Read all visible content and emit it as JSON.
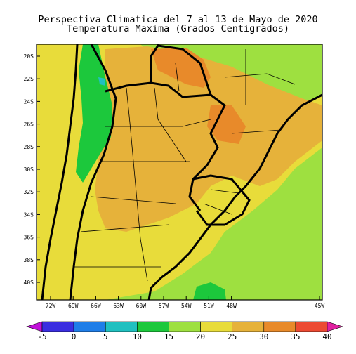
{
  "title": {
    "line1": "Perspectiva Climatica del 7 al 13 de Mayo de 2020",
    "line2": "Temperatura Maxima (Grados Centigrados)"
  },
  "map": {
    "lat_labels": [
      "20S",
      "22S",
      "24S",
      "26S",
      "28S",
      "30S",
      "32S",
      "34S",
      "36S",
      "38S",
      "40S"
    ],
    "lon_labels": [
      "72W",
      "69W",
      "66W",
      "63W",
      "60W",
      "57W",
      "54W",
      "51W",
      "48W",
      "45W"
    ]
  },
  "colorbar": {
    "labels": [
      "-5",
      "0",
      "5",
      "10",
      "15",
      "20",
      "25",
      "30",
      "35",
      "40"
    ],
    "colors": {
      "under": "#c010d8",
      "bins": [
        "#3a2ee0",
        "#1f7ee8",
        "#20c0c0",
        "#1cc83c",
        "#9ee040",
        "#e8dc3a",
        "#e6b23a",
        "#e88a2a",
        "#ec4a32"
      ],
      "over": "#e020a0"
    }
  },
  "palette": {
    "ocean": "#9ee040",
    "land_warm": "#e6b23a",
    "land_hot": "#e88a2a",
    "land_mild": "#e8dc3a",
    "andes": "#1cc83c",
    "cool_blue": "#20c0c0"
  }
}
